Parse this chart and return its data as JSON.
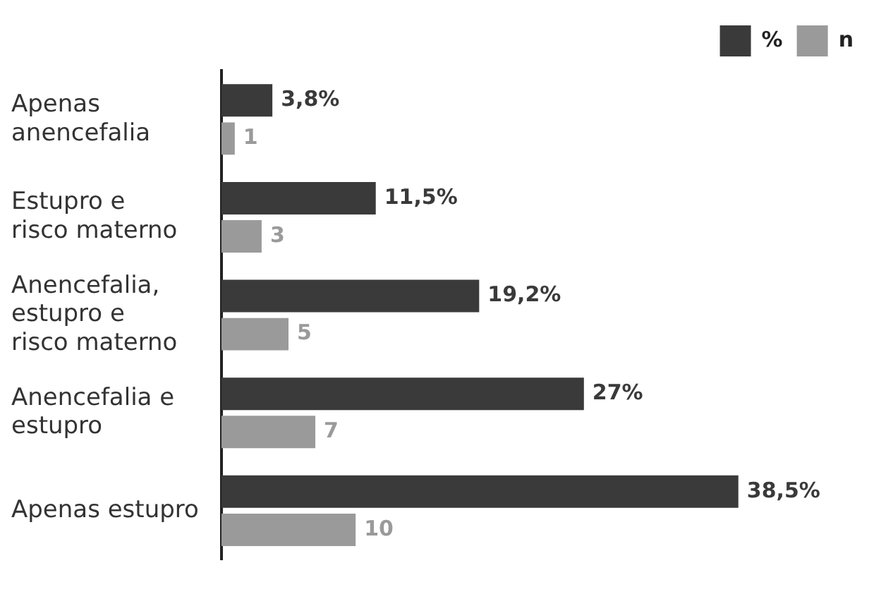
{
  "chart_data": {
    "type": "bar",
    "orientation": "horizontal",
    "categories": [
      "Apenas anencefalia",
      "Estupro e risco materno",
      "Anencefalia, estupro e risco materno",
      "Anencefalia e estupro",
      "Apenas estupro"
    ],
    "series": [
      {
        "name": "%",
        "color": "#3a3a3a",
        "values": [
          3.8,
          11.5,
          19.2,
          27,
          38.5
        ],
        "value_labels": [
          "3,8%",
          "11,5%",
          "19,2%",
          "27%",
          "38,5%"
        ]
      },
      {
        "name": "n",
        "color": "#9a9a9b",
        "values": [
          1,
          3,
          5,
          7,
          10
        ],
        "value_labels": [
          "1",
          "3",
          "5",
          "7",
          "10"
        ]
      }
    ],
    "legend": "top right",
    "grid": false
  }
}
